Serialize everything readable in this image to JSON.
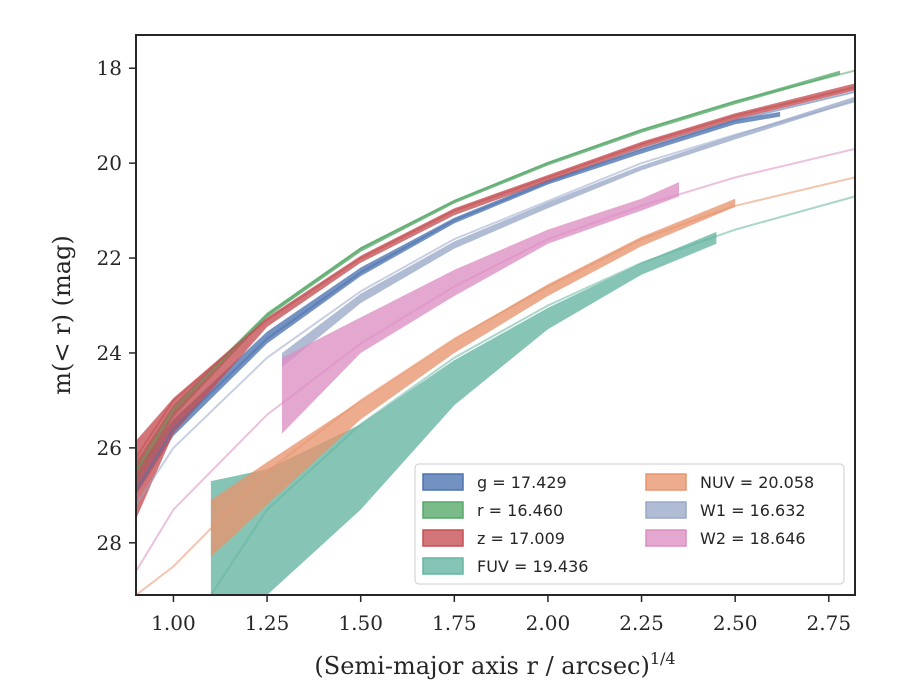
{
  "chart_data": {
    "type": "area",
    "xlabel": "(Semi-major axis r / arcsec)",
    "xlabel_superscript": "1/4",
    "ylabel_prefix": "m(< r) (mag)",
    "xlim": [
      0.9,
      2.82
    ],
    "ylim": [
      29.1,
      17.3
    ],
    "y_inverted": true,
    "grid": false,
    "x_ticks": [
      1.0,
      1.25,
      1.5,
      1.75,
      2.0,
      2.25,
      2.5,
      2.75
    ],
    "x_tick_labels": [
      "1.00",
      "1.25",
      "1.50",
      "1.75",
      "2.00",
      "2.25",
      "2.50",
      "2.75"
    ],
    "y_ticks": [
      18,
      20,
      22,
      24,
      26,
      28
    ],
    "y_tick_labels": [
      "18",
      "20",
      "22",
      "24",
      "26",
      "28"
    ],
    "legend_placement": "lower-right",
    "series": [
      {
        "id": "g",
        "legend_label": "g = 17.429",
        "color": "#4c72b0",
        "model_x": [
          0.9,
          1.0,
          1.25,
          1.5,
          1.75,
          2.0,
          2.25,
          2.5,
          2.82
        ],
        "model_y": [
          26.9,
          25.6,
          23.7,
          22.3,
          21.2,
          20.4,
          19.7,
          19.1,
          18.5
        ],
        "band_x": [
          0.9,
          1.0,
          1.25,
          1.5,
          1.75,
          2.0,
          2.25,
          2.5,
          2.62
        ],
        "band_lower": [
          26.45,
          25.4,
          23.55,
          22.2,
          21.15,
          20.35,
          19.7,
          19.08,
          18.92
        ],
        "band_upper": [
          27.0,
          25.75,
          23.8,
          22.38,
          21.27,
          20.45,
          19.8,
          19.18,
          19.02
        ]
      },
      {
        "id": "r",
        "legend_label": "r = 16.460",
        "color": "#55a868",
        "model_x": [
          0.9,
          1.0,
          1.25,
          1.5,
          1.75,
          2.0,
          2.25,
          2.5,
          2.82
        ],
        "model_y": [
          26.5,
          25.2,
          23.2,
          21.8,
          20.8,
          20.0,
          19.3,
          18.7,
          18.05
        ],
        "band_x": [
          0.9,
          1.0,
          1.25,
          1.5,
          1.75,
          2.0,
          2.25,
          2.5,
          2.78
        ],
        "band_lower": [
          26.3,
          25.1,
          23.15,
          21.77,
          20.77,
          19.97,
          19.28,
          18.68,
          18.05
        ],
        "band_upper": [
          26.7,
          25.35,
          23.25,
          21.87,
          20.85,
          20.05,
          19.36,
          18.76,
          18.13
        ]
      },
      {
        "id": "z",
        "legend_label": "z = 17.009",
        "color": "#c44e52",
        "model_x": [
          0.9,
          1.0,
          1.25,
          1.5,
          1.75,
          2.0,
          2.25,
          2.5,
          2.82
        ],
        "model_y": [
          26.2,
          25.0,
          23.3,
          22.0,
          21.0,
          20.3,
          19.6,
          19.0,
          18.4
        ],
        "band_x": [
          0.9,
          1.0,
          1.25,
          1.5,
          1.75,
          2.0,
          2.25,
          2.5,
          2.82
        ],
        "band_lower": [
          25.85,
          24.95,
          23.25,
          21.95,
          20.95,
          20.25,
          19.55,
          18.95,
          18.32
        ],
        "band_upper": [
          27.5,
          25.7,
          23.45,
          22.1,
          21.1,
          20.38,
          19.68,
          19.08,
          18.47
        ]
      },
      {
        "id": "FUV",
        "legend_label": "FUV = 19.436",
        "color": "#64b5a0",
        "model_x": [
          1.1,
          1.25,
          1.5,
          1.75,
          2.0,
          2.25,
          2.5,
          2.82
        ],
        "model_y": [
          29.1,
          27.3,
          25.5,
          24.1,
          23.0,
          22.1,
          21.4,
          20.7
        ],
        "band_x": [
          1.1,
          1.25,
          1.5,
          1.75,
          2.0,
          2.25,
          2.45
        ],
        "band_lower": [
          26.7,
          26.45,
          25.5,
          24.15,
          23.05,
          22.1,
          21.45
        ],
        "band_upper": [
          29.1,
          29.1,
          27.3,
          25.1,
          23.5,
          22.35,
          21.7
        ]
      },
      {
        "id": "NUV",
        "legend_label": "NUV = 20.058",
        "color": "#e8956e",
        "model_x": [
          0.9,
          1.0,
          1.25,
          1.5,
          1.75,
          2.0,
          2.25,
          2.5,
          2.82
        ],
        "model_y": [
          29.1,
          28.5,
          26.5,
          25.0,
          23.7,
          22.6,
          21.6,
          20.9,
          20.3
        ],
        "band_x": [
          1.1,
          1.25,
          1.5,
          1.75,
          2.0,
          2.25,
          2.5
        ],
        "band_lower": [
          27.1,
          26.3,
          25.0,
          23.7,
          22.55,
          21.55,
          20.75
        ],
        "band_upper": [
          28.3,
          27.2,
          25.4,
          24.0,
          22.8,
          21.75,
          20.92
        ]
      },
      {
        "id": "W1",
        "legend_label": "W1 = 16.632",
        "color": "#9aa8c8",
        "model_x": [
          0.9,
          1.0,
          1.25,
          1.5,
          1.75,
          2.0,
          2.25,
          2.5,
          2.82
        ],
        "model_y": [
          27.2,
          26.0,
          24.1,
          22.7,
          21.6,
          20.8,
          20.0,
          19.4,
          18.7
        ],
        "band_x": [
          1.29,
          1.5,
          1.75,
          2.0,
          2.25,
          2.5,
          2.82
        ],
        "band_lower": [
          24.0,
          22.75,
          21.65,
          20.82,
          20.05,
          19.4,
          18.6
        ],
        "band_upper": [
          24.3,
          22.95,
          21.8,
          20.95,
          20.15,
          19.5,
          18.7
        ]
      },
      {
        "id": "W2",
        "legend_label": "W2 = 18.646",
        "color": "#dd8ec3",
        "model_x": [
          0.9,
          1.0,
          1.25,
          1.5,
          1.75,
          2.0,
          2.25,
          2.5,
          2.82
        ],
        "model_y": [
          28.6,
          27.3,
          25.3,
          23.8,
          22.6,
          21.6,
          20.9,
          20.3,
          19.7
        ],
        "band_x": [
          1.29,
          1.5,
          1.75,
          2.0,
          2.25,
          2.35
        ],
        "band_lower": [
          24.1,
          23.25,
          22.25,
          21.4,
          20.75,
          20.4
        ],
        "band_upper": [
          25.7,
          24.0,
          22.8,
          21.7,
          21.0,
          20.7
        ]
      }
    ],
    "legend_columns": [
      [
        "g",
        "r",
        "z",
        "FUV"
      ],
      [
        "NUV",
        "W1",
        "W2"
      ]
    ]
  }
}
